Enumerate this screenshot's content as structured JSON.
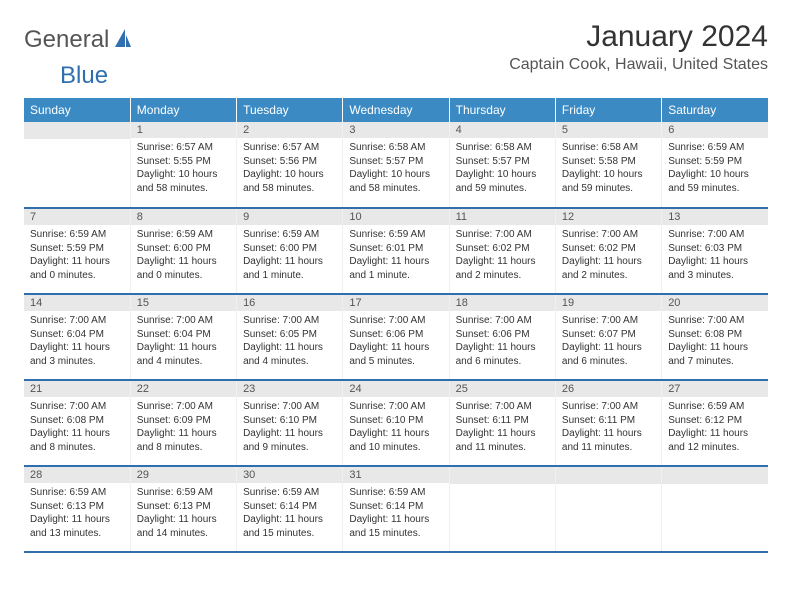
{
  "logo": {
    "part1": "General",
    "part2": "Blue"
  },
  "title": "January 2024",
  "location": "Captain Cook, Hawaii, United States",
  "colors": {
    "header_bg": "#3b8ac4",
    "accent": "#2f6fb0",
    "daynum_bg": "#e8e8e8",
    "text": "#333333"
  },
  "weekdays": [
    "Sunday",
    "Monday",
    "Tuesday",
    "Wednesday",
    "Thursday",
    "Friday",
    "Saturday"
  ],
  "weeks": [
    [
      null,
      {
        "n": "1",
        "sr": "Sunrise: 6:57 AM",
        "ss": "Sunset: 5:55 PM",
        "dl": "Daylight: 10 hours and 58 minutes."
      },
      {
        "n": "2",
        "sr": "Sunrise: 6:57 AM",
        "ss": "Sunset: 5:56 PM",
        "dl": "Daylight: 10 hours and 58 minutes."
      },
      {
        "n": "3",
        "sr": "Sunrise: 6:58 AM",
        "ss": "Sunset: 5:57 PM",
        "dl": "Daylight: 10 hours and 58 minutes."
      },
      {
        "n": "4",
        "sr": "Sunrise: 6:58 AM",
        "ss": "Sunset: 5:57 PM",
        "dl": "Daylight: 10 hours and 59 minutes."
      },
      {
        "n": "5",
        "sr": "Sunrise: 6:58 AM",
        "ss": "Sunset: 5:58 PM",
        "dl": "Daylight: 10 hours and 59 minutes."
      },
      {
        "n": "6",
        "sr": "Sunrise: 6:59 AM",
        "ss": "Sunset: 5:59 PM",
        "dl": "Daylight: 10 hours and 59 minutes."
      }
    ],
    [
      {
        "n": "7",
        "sr": "Sunrise: 6:59 AM",
        "ss": "Sunset: 5:59 PM",
        "dl": "Daylight: 11 hours and 0 minutes."
      },
      {
        "n": "8",
        "sr": "Sunrise: 6:59 AM",
        "ss": "Sunset: 6:00 PM",
        "dl": "Daylight: 11 hours and 0 minutes."
      },
      {
        "n": "9",
        "sr": "Sunrise: 6:59 AM",
        "ss": "Sunset: 6:00 PM",
        "dl": "Daylight: 11 hours and 1 minute."
      },
      {
        "n": "10",
        "sr": "Sunrise: 6:59 AM",
        "ss": "Sunset: 6:01 PM",
        "dl": "Daylight: 11 hours and 1 minute."
      },
      {
        "n": "11",
        "sr": "Sunrise: 7:00 AM",
        "ss": "Sunset: 6:02 PM",
        "dl": "Daylight: 11 hours and 2 minutes."
      },
      {
        "n": "12",
        "sr": "Sunrise: 7:00 AM",
        "ss": "Sunset: 6:02 PM",
        "dl": "Daylight: 11 hours and 2 minutes."
      },
      {
        "n": "13",
        "sr": "Sunrise: 7:00 AM",
        "ss": "Sunset: 6:03 PM",
        "dl": "Daylight: 11 hours and 3 minutes."
      }
    ],
    [
      {
        "n": "14",
        "sr": "Sunrise: 7:00 AM",
        "ss": "Sunset: 6:04 PM",
        "dl": "Daylight: 11 hours and 3 minutes."
      },
      {
        "n": "15",
        "sr": "Sunrise: 7:00 AM",
        "ss": "Sunset: 6:04 PM",
        "dl": "Daylight: 11 hours and 4 minutes."
      },
      {
        "n": "16",
        "sr": "Sunrise: 7:00 AM",
        "ss": "Sunset: 6:05 PM",
        "dl": "Daylight: 11 hours and 4 minutes."
      },
      {
        "n": "17",
        "sr": "Sunrise: 7:00 AM",
        "ss": "Sunset: 6:06 PM",
        "dl": "Daylight: 11 hours and 5 minutes."
      },
      {
        "n": "18",
        "sr": "Sunrise: 7:00 AM",
        "ss": "Sunset: 6:06 PM",
        "dl": "Daylight: 11 hours and 6 minutes."
      },
      {
        "n": "19",
        "sr": "Sunrise: 7:00 AM",
        "ss": "Sunset: 6:07 PM",
        "dl": "Daylight: 11 hours and 6 minutes."
      },
      {
        "n": "20",
        "sr": "Sunrise: 7:00 AM",
        "ss": "Sunset: 6:08 PM",
        "dl": "Daylight: 11 hours and 7 minutes."
      }
    ],
    [
      {
        "n": "21",
        "sr": "Sunrise: 7:00 AM",
        "ss": "Sunset: 6:08 PM",
        "dl": "Daylight: 11 hours and 8 minutes."
      },
      {
        "n": "22",
        "sr": "Sunrise: 7:00 AM",
        "ss": "Sunset: 6:09 PM",
        "dl": "Daylight: 11 hours and 8 minutes."
      },
      {
        "n": "23",
        "sr": "Sunrise: 7:00 AM",
        "ss": "Sunset: 6:10 PM",
        "dl": "Daylight: 11 hours and 9 minutes."
      },
      {
        "n": "24",
        "sr": "Sunrise: 7:00 AM",
        "ss": "Sunset: 6:10 PM",
        "dl": "Daylight: 11 hours and 10 minutes."
      },
      {
        "n": "25",
        "sr": "Sunrise: 7:00 AM",
        "ss": "Sunset: 6:11 PM",
        "dl": "Daylight: 11 hours and 11 minutes."
      },
      {
        "n": "26",
        "sr": "Sunrise: 7:00 AM",
        "ss": "Sunset: 6:11 PM",
        "dl": "Daylight: 11 hours and 11 minutes."
      },
      {
        "n": "27",
        "sr": "Sunrise: 6:59 AM",
        "ss": "Sunset: 6:12 PM",
        "dl": "Daylight: 11 hours and 12 minutes."
      }
    ],
    [
      {
        "n": "28",
        "sr": "Sunrise: 6:59 AM",
        "ss": "Sunset: 6:13 PM",
        "dl": "Daylight: 11 hours and 13 minutes."
      },
      {
        "n": "29",
        "sr": "Sunrise: 6:59 AM",
        "ss": "Sunset: 6:13 PM",
        "dl": "Daylight: 11 hours and 14 minutes."
      },
      {
        "n": "30",
        "sr": "Sunrise: 6:59 AM",
        "ss": "Sunset: 6:14 PM",
        "dl": "Daylight: 11 hours and 15 minutes."
      },
      {
        "n": "31",
        "sr": "Sunrise: 6:59 AM",
        "ss": "Sunset: 6:14 PM",
        "dl": "Daylight: 11 hours and 15 minutes."
      },
      null,
      null,
      null
    ]
  ]
}
